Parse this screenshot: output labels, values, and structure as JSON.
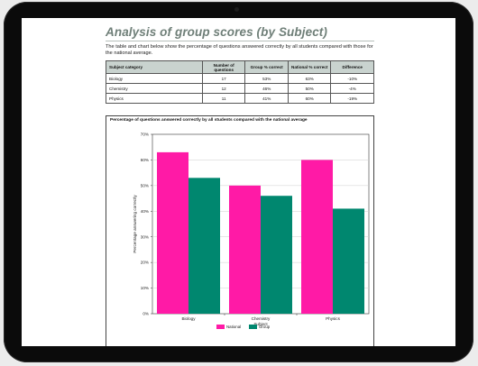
{
  "document": {
    "title": "Analysis of group scores (by Subject)",
    "intro": "The table and chart below show the percentage of questions answered correctly by all students compared with those for the national average."
  },
  "table": {
    "headers": [
      "Subject category",
      "Number of questions",
      "Group % correct",
      "National % correct",
      "Difference"
    ],
    "rows": [
      [
        "Biology",
        "17",
        "53%",
        "63%",
        "-10%"
      ],
      [
        "Chemistry",
        "12",
        "46%",
        "50%",
        "-4%"
      ],
      [
        "Physics",
        "11",
        "41%",
        "60%",
        "-19%"
      ]
    ]
  },
  "chart_data": {
    "type": "bar",
    "title": "Percentage of questions answered correctly by all students compared with the national average",
    "xlabel": "Subject",
    "ylabel": "Percentage answering correctly",
    "categories": [
      "Biology",
      "Chemistry",
      "Physics"
    ],
    "series": [
      {
        "name": "National",
        "values": [
          63,
          50,
          60
        ],
        "color": "#ff1aa6"
      },
      {
        "name": "Group",
        "values": [
          53,
          46,
          41
        ],
        "color": "#00876f"
      }
    ],
    "ylim": [
      0,
      70
    ],
    "yticks": [
      "0%",
      "10%",
      "20%",
      "30%",
      "40%",
      "50%",
      "60%",
      "70%"
    ],
    "grid": true,
    "legend": "bottom-center"
  }
}
